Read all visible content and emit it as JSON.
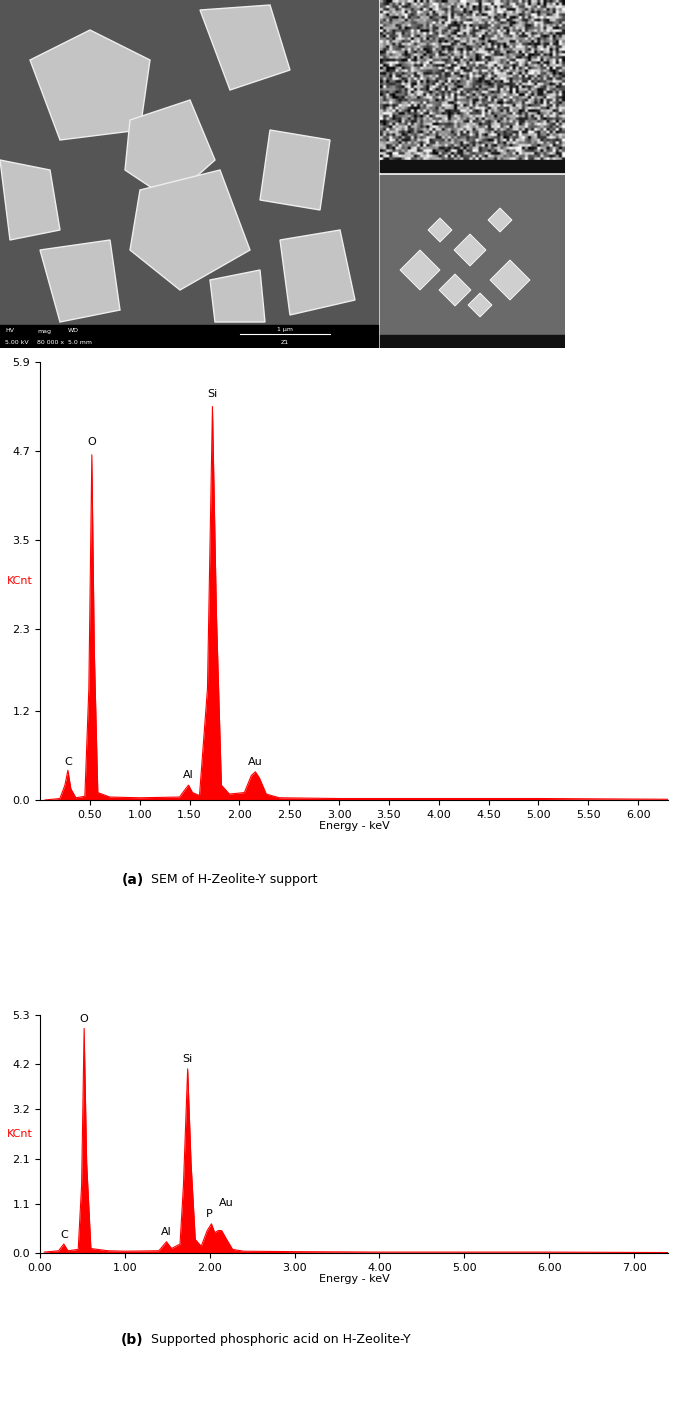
{
  "sem_image": {
    "info_bar": {
      "headers": [
        "HV",
        "mag",
        "WD"
      ],
      "values": [
        "5.00 kV",
        "80 000 x",
        "5.0 mm"
      ]
    },
    "scale_bar": "1 µm",
    "sample": "Z1"
  },
  "chart_data": [
    {
      "type": "area",
      "color": "#ff0000",
      "xlabel": "Energy - keV",
      "ylabel": "KCnt",
      "caption_label": "(a)",
      "caption": "SEM of H-Zeolite-Y support",
      "x": [
        0.05,
        0.2,
        0.25,
        0.28,
        0.31,
        0.36,
        0.45,
        0.49,
        0.52,
        0.545,
        0.58,
        0.7,
        1.0,
        1.4,
        1.46,
        1.49,
        1.53,
        1.6,
        1.68,
        1.73,
        1.77,
        1.82,
        1.9,
        2.05,
        2.12,
        2.16,
        2.2,
        2.27,
        2.4,
        3.0,
        4.0,
        5.0,
        6.3
      ],
      "values": [
        0,
        0.02,
        0.2,
        0.4,
        0.15,
        0.03,
        0.05,
        1.5,
        4.65,
        2.0,
        0.1,
        0.04,
        0.03,
        0.04,
        0.15,
        0.2,
        0.1,
        0.06,
        1.5,
        5.3,
        2.5,
        0.2,
        0.08,
        0.1,
        0.33,
        0.38,
        0.3,
        0.08,
        0.03,
        0.02,
        0.02,
        0.02,
        0.01
      ],
      "annotations": [
        {
          "text": "C",
          "x": 0.28,
          "y": 0.45
        },
        {
          "text": "O",
          "x": 0.52,
          "y": 4.75
        },
        {
          "text": "Al",
          "x": 1.49,
          "y": 0.27
        },
        {
          "text": "Si",
          "x": 1.73,
          "y": 5.4
        },
        {
          "text": "Au",
          "x": 2.16,
          "y": 0.45
        }
      ],
      "xlim": [
        0,
        6.3
      ],
      "ylim": [
        0,
        5.9
      ],
      "xticks": [
        {
          "value": 0.5,
          "label": "0.50"
        },
        {
          "value": 1.0,
          "label": "1.00"
        },
        {
          "value": 1.5,
          "label": "1.50"
        },
        {
          "value": 2.0,
          "label": "2.00"
        },
        {
          "value": 2.5,
          "label": "2.50"
        },
        {
          "value": 3.0,
          "label": "3.00"
        },
        {
          "value": 3.5,
          "label": "3.50"
        },
        {
          "value": 4.0,
          "label": "4.00"
        },
        {
          "value": 4.5,
          "label": "4.50"
        },
        {
          "value": 5.0,
          "label": "5.00"
        },
        {
          "value": 5.5,
          "label": "5.50"
        },
        {
          "value": 6.0,
          "label": "6.00"
        }
      ],
      "yticks": [
        {
          "value": 0,
          "label": "0.0"
        },
        1.2,
        2.3,
        3.5,
        4.7,
        5.9
      ]
    },
    {
      "type": "area",
      "color": "#ff0000",
      "xlabel": "Energy - keV",
      "ylabel": "KCnt",
      "caption_label": "(b)",
      "caption": "Supported phosphoric acid on H-Zeolite-Y",
      "x": [
        0.05,
        0.22,
        0.28,
        0.33,
        0.45,
        0.49,
        0.52,
        0.55,
        0.6,
        0.8,
        1.0,
        1.4,
        1.49,
        1.55,
        1.65,
        1.69,
        1.74,
        1.78,
        1.83,
        1.9,
        1.97,
        2.02,
        2.06,
        2.1,
        2.14,
        2.2,
        2.27,
        2.4,
        3.0,
        4.0,
        5.0,
        6.0,
        7.4
      ],
      "values": [
        0.02,
        0.05,
        0.2,
        0.05,
        0.08,
        1.5,
        5.0,
        2.0,
        0.1,
        0.05,
        0.04,
        0.05,
        0.25,
        0.1,
        0.2,
        1.5,
        4.1,
        2.0,
        0.3,
        0.15,
        0.5,
        0.65,
        0.45,
        0.5,
        0.5,
        0.3,
        0.08,
        0.04,
        0.03,
        0.02,
        0.02,
        0.02,
        0.01
      ],
      "annotations": [
        {
          "text": "C",
          "x": 0.28,
          "y": 0.3
        },
        {
          "text": "O",
          "x": 0.52,
          "y": 5.1
        },
        {
          "text": "Al",
          "x": 1.49,
          "y": 0.35
        },
        {
          "text": "Si",
          "x": 1.74,
          "y": 4.2
        },
        {
          "text": "P",
          "x": 2.0,
          "y": 0.75
        },
        {
          "text": "Au",
          "x": 2.2,
          "y": 1.0
        }
      ],
      "xlim": [
        0,
        7.4
      ],
      "ylim": [
        0,
        5.3
      ],
      "xticks": [
        {
          "value": 0,
          "label": "0.00"
        },
        {
          "value": 1.0,
          "label": "1.00"
        },
        {
          "value": 2.0,
          "label": "2.00"
        },
        {
          "value": 3.0,
          "label": "3.00"
        },
        {
          "value": 4.0,
          "label": "4.00"
        },
        {
          "value": 5.0,
          "label": "5.00"
        },
        {
          "value": 6.0,
          "label": "6.00"
        },
        {
          "value": 7.0,
          "label": "7.00"
        }
      ],
      "yticks": [
        {
          "value": 0,
          "label": "0.0"
        },
        1.1,
        2.1,
        3.2,
        4.2,
        5.3
      ]
    }
  ]
}
